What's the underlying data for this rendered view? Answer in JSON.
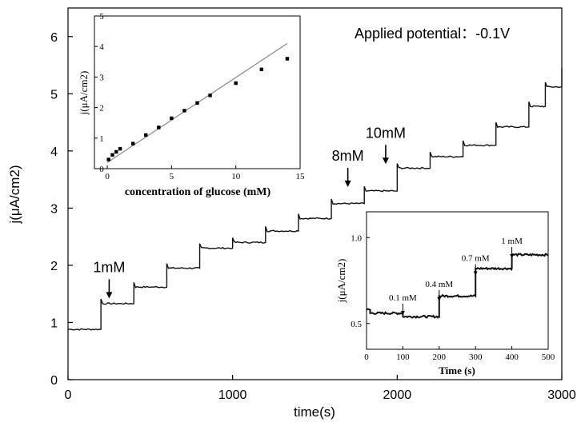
{
  "chart_data": [
    {
      "type": "line",
      "xlabel": "time(s)",
      "ylabel": "j(μA/cm2)",
      "xlim": [
        0,
        3000
      ],
      "ylim": [
        0,
        6.5
      ],
      "xticks": [
        0,
        1000,
        2000,
        3000
      ],
      "yticks": [
        0,
        1,
        2,
        3,
        4,
        5,
        6
      ],
      "annotation": "Applied potential：-0.1V",
      "arrows": [
        {
          "label": "1mM",
          "x": 250,
          "y": 1.35
        },
        {
          "label": "8mM",
          "x": 1700,
          "y": 3.3
        },
        {
          "label": "10mM",
          "x": 1930,
          "y": 3.7
        }
      ],
      "steps": [
        {
          "x": 0,
          "y": 0.88
        },
        {
          "x": 200,
          "y": 1.33
        },
        {
          "x": 400,
          "y": 1.62
        },
        {
          "x": 600,
          "y": 1.95
        },
        {
          "x": 800,
          "y": 2.3
        },
        {
          "x": 1000,
          "y": 2.4
        },
        {
          "x": 1200,
          "y": 2.6
        },
        {
          "x": 1400,
          "y": 2.82
        },
        {
          "x": 1600,
          "y": 3.08
        },
        {
          "x": 1800,
          "y": 3.3
        },
        {
          "x": 2000,
          "y": 3.7
        },
        {
          "x": 2200,
          "y": 3.9
        },
        {
          "x": 2400,
          "y": 4.1
        },
        {
          "x": 2600,
          "y": 4.42
        },
        {
          "x": 2800,
          "y": 4.78
        },
        {
          "x": 2900,
          "y": 5.12
        },
        {
          "x": 3000,
          "y": 5.45
        }
      ]
    },
    {
      "type": "scatter",
      "xlabel": "concentration of glucose (mM)",
      "ylabel": "j(μA/cm2)",
      "xlim": [
        -1,
        15
      ],
      "ylim": [
        0,
        5
      ],
      "xticks": [
        0,
        5,
        10,
        15
      ],
      "yticks": [
        0,
        1,
        2,
        3,
        4,
        5
      ],
      "x": [
        0.1,
        0.4,
        0.7,
        1,
        2,
        3,
        4,
        5,
        6,
        7,
        8,
        10,
        12,
        14
      ],
      "y": [
        0.3,
        0.45,
        0.55,
        0.65,
        0.82,
        1.1,
        1.35,
        1.65,
        1.9,
        2.15,
        2.4,
        2.8,
        3.25,
        3.6
      ],
      "fit_line": {
        "x": [
          0,
          14
        ],
        "y": [
          0.2,
          4.1
        ]
      }
    },
    {
      "type": "line",
      "xlabel": "Time (s)",
      "ylabel": "j(μA/cm2)",
      "xlim": [
        0,
        500
      ],
      "ylim": [
        0.35,
        1.15
      ],
      "xticks": [
        0,
        100,
        200,
        300,
        400,
        500
      ],
      "yticks": [
        0.5,
        1.0
      ],
      "ytick_labels": [
        "0.5",
        "1.0"
      ],
      "arrows": [
        {
          "label": "0.1 mM",
          "x": 100,
          "y": 0.55
        },
        {
          "label": "0.4 mM",
          "x": 200,
          "y": 0.63
        },
        {
          "label": "0.7 mM",
          "x": 300,
          "y": 0.78
        },
        {
          "label": "1 mM",
          "x": 400,
          "y": 0.88
        }
      ],
      "steps": [
        {
          "x": 0,
          "y": 0.58
        },
        {
          "x": 10,
          "y": 0.56
        },
        {
          "x": 100,
          "y": 0.54
        },
        {
          "x": 200,
          "y": 0.66
        },
        {
          "x": 300,
          "y": 0.82
        },
        {
          "x": 400,
          "y": 0.9
        }
      ]
    }
  ]
}
